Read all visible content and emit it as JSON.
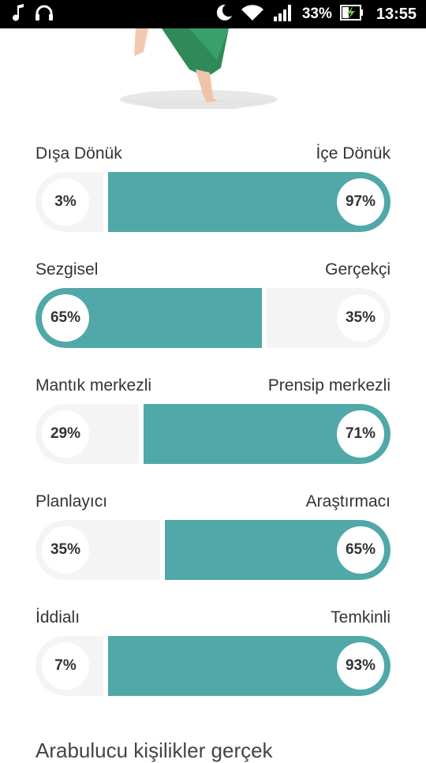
{
  "status_bar": {
    "battery": "33%",
    "time": "13:55",
    "icons": [
      "music-note-icon",
      "headset-icon",
      "moon-icon",
      "wifi-icon",
      "signal-icon",
      "battery-charging-icon"
    ]
  },
  "traits": [
    {
      "left_label": "Dışa Dönük",
      "right_label": "İçe Dönük",
      "left_pct": "3%",
      "right_pct": "97%",
      "left_value": 3,
      "right_value": 97,
      "dominant": "right"
    },
    {
      "left_label": "Sezgisel",
      "right_label": "Gerçekçi",
      "left_pct": "65%",
      "right_pct": "35%",
      "left_value": 65,
      "right_value": 35,
      "dominant": "left"
    },
    {
      "left_label": "Mantık merkezli",
      "right_label": "Prensip merkezli",
      "left_pct": "29%",
      "right_pct": "71%",
      "left_value": 29,
      "right_value": 71,
      "dominant": "right"
    },
    {
      "left_label": "Planlayıcı",
      "right_label": "Araştırmacı",
      "left_pct": "35%",
      "right_pct": "65%",
      "left_value": 35,
      "right_value": 65,
      "dominant": "right"
    },
    {
      "left_label": "İddialı",
      "right_label": "Temkinli",
      "left_pct": "7%",
      "right_pct": "93%",
      "left_value": 7,
      "right_value": 93,
      "dominant": "right"
    }
  ],
  "colors": {
    "accent": "#50a8a8",
    "track": "#f4f4f4"
  },
  "footer": {
    "text": "Arabulucu kişilikler gerçek"
  }
}
